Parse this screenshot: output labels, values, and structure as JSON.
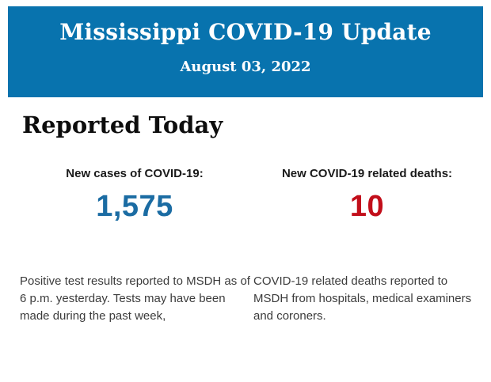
{
  "header": {
    "title": "Mississippi COVID-19 Update",
    "date": "August 03, 2022",
    "background_color": "#0873ae",
    "text_color": "#ffffff"
  },
  "section": {
    "heading": "Reported Today"
  },
  "stats": {
    "cases": {
      "label": "New cases of COVID-19:",
      "value": "1,575",
      "value_color": "#1b6ca3",
      "description": "Positive test results reported to MSDH as of 6 p.m. yesterday. Tests may have been made during the past week,"
    },
    "deaths": {
      "label": "New COVID-19 related deaths:",
      "value": "10",
      "value_color": "#c20e1a",
      "description": "COVID-19 related deaths reported to MSDH from hospitals, medical examiners and coroners."
    }
  }
}
